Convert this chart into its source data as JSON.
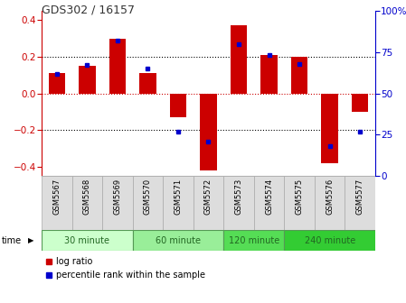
{
  "title": "GDS302 / 16157",
  "samples": [
    "GSM5567",
    "GSM5568",
    "GSM5569",
    "GSM5570",
    "GSM5571",
    "GSM5572",
    "GSM5573",
    "GSM5574",
    "GSM5575",
    "GSM5576",
    "GSM5577"
  ],
  "log_ratio": [
    0.11,
    0.15,
    0.3,
    0.11,
    -0.13,
    -0.42,
    0.37,
    0.21,
    0.2,
    -0.38,
    -0.1
  ],
  "percentile_rank": [
    62,
    67,
    82,
    65,
    27,
    21,
    80,
    73,
    68,
    18,
    27
  ],
  "groups": [
    {
      "label": "30 minute",
      "samples": [
        0,
        1,
        2
      ],
      "color": "#ccffcc"
    },
    {
      "label": "60 minute",
      "samples": [
        3,
        4,
        5
      ],
      "color": "#99ee99"
    },
    {
      "label": "120 minute",
      "samples": [
        6,
        7
      ],
      "color": "#55dd55"
    },
    {
      "label": "240 minute",
      "samples": [
        8,
        9,
        10
      ],
      "color": "#33cc33"
    }
  ],
  "bar_color": "#cc0000",
  "dot_color": "#0000cc",
  "ylim_left": [
    -0.45,
    0.45
  ],
  "ylim_right": [
    0,
    100
  ],
  "yticks_left": [
    -0.4,
    -0.2,
    0.0,
    0.2,
    0.4
  ],
  "yticks_right": [
    0,
    25,
    50,
    75,
    100
  ],
  "ylabel_left_color": "#cc0000",
  "ylabel_right_color": "#0000cc",
  "hline_colors": {
    "dotted": "#000000",
    "zero": "#cc0000"
  },
  "time_label": "time",
  "legend_log_ratio": "log ratio",
  "legend_percentile": "percentile rank within the sample",
  "group_text_color": "#226622",
  "group_border_color": "#559955",
  "sample_bg_color": "#dddddd",
  "sample_border_color": "#aaaaaa"
}
